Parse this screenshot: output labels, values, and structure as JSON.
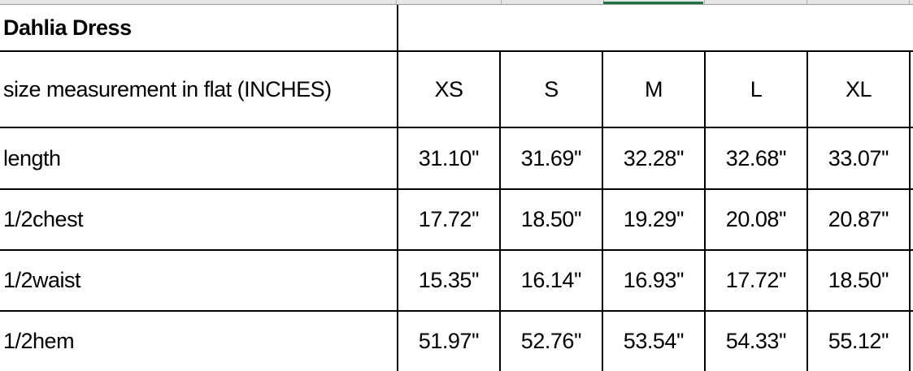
{
  "sheet": {
    "title": "Dahlia Dress",
    "header_label": "size measurement in flat (INCHES)",
    "sizes": [
      "XS",
      "S",
      "M",
      "L",
      "XL"
    ],
    "rows": [
      {
        "label": "length",
        "values": [
          "31.10''",
          "31.69''",
          "32.28''",
          "32.68''",
          "33.07''"
        ]
      },
      {
        "label": "1/2chest",
        "values": [
          "17.72''",
          "18.50''",
          "19.29''",
          "20.08''",
          "20.87''"
        ]
      },
      {
        "label": "1/2waist",
        "values": [
          "15.35''",
          "16.14''",
          "16.93''",
          "17.72''",
          "18.50''"
        ]
      },
      {
        "label": "1/2hem",
        "values": [
          "51.97''",
          "52.76''",
          "53.54''",
          "54.33''",
          "55.12''"
        ]
      }
    ]
  },
  "colors": {
    "selected_column_accent": "#217346",
    "grid": "#000000"
  }
}
